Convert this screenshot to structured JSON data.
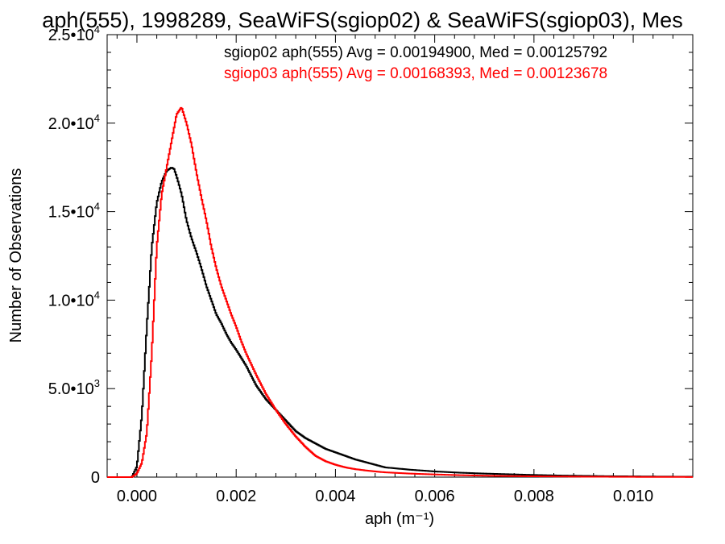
{
  "chart_data": {
    "type": "line",
    "title": "aph(555), 1998289, SeaWiFS(sgiop02) & SeaWiFS(sgiop03), Mes",
    "xlabel": "aph (m⁻¹)",
    "ylabel": "Number of Observations",
    "xlim": [
      -0.0006,
      0.0112
    ],
    "ylim": [
      0,
      25000
    ],
    "xticks": [
      0.0,
      0.002,
      0.004,
      0.006,
      0.008,
      0.01
    ],
    "xtick_labels": [
      "0.000",
      "0.002",
      "0.004",
      "0.006",
      "0.008",
      "0.010"
    ],
    "yticks": [
      0,
      5000,
      10000,
      15000,
      20000,
      25000
    ],
    "ytick_labels": [
      {
        "mant": "0",
        "exp": ""
      },
      {
        "mant": "5.0•10",
        "exp": "3"
      },
      {
        "mant": "1.0•10",
        "exp": "4"
      },
      {
        "mant": "1.5•10",
        "exp": "4"
      },
      {
        "mant": "2.0•10",
        "exp": "4"
      },
      {
        "mant": "2.5•10",
        "exp": "4"
      }
    ],
    "legend_position": "top-right",
    "series": [
      {
        "name": "sgiop02",
        "color": "#000000",
        "legend": "sgiop02 aph(555) Avg = 0.00194900, Med = 0.00125792",
        "x": [
          -0.0006,
          -0.0001,
          0.0,
          0.0001,
          0.0002,
          0.0003,
          0.0004,
          0.0005,
          0.0006,
          0.0007,
          0.00075,
          0.0008,
          0.0009,
          0.001,
          0.0011,
          0.0012,
          0.0013,
          0.0014,
          0.0015,
          0.0016,
          0.0017,
          0.0018,
          0.0019,
          0.002,
          0.0022,
          0.0024,
          0.0026,
          0.0028,
          0.003,
          0.0032,
          0.0034,
          0.0036,
          0.0038,
          0.004,
          0.0042,
          0.0044,
          0.0046,
          0.0048,
          0.005,
          0.0055,
          0.006,
          0.0065,
          0.007,
          0.0075,
          0.008,
          0.0085,
          0.009,
          0.0095,
          0.01,
          0.0105,
          0.0112
        ],
        "y": [
          0,
          0,
          600,
          3500,
          8500,
          13000,
          15500,
          16700,
          17300,
          17500,
          17400,
          17000,
          16000,
          14500,
          13500,
          12700,
          11800,
          10800,
          10000,
          9200,
          8700,
          8100,
          7600,
          7200,
          6300,
          5200,
          4400,
          3800,
          3200,
          2600,
          2200,
          1900,
          1600,
          1400,
          1200,
          1000,
          850,
          700,
          550,
          420,
          320,
          250,
          200,
          160,
          120,
          90,
          70,
          50,
          40,
          30,
          20
        ]
      },
      {
        "name": "sgiop03",
        "color": "#ff0000",
        "legend": "sgiop03 aph(555) Avg = 0.00168393, Med = 0.00123678",
        "x": [
          -0.0006,
          -0.0001,
          0.0,
          0.0001,
          0.0002,
          0.0003,
          0.0004,
          0.0005,
          0.0006,
          0.0007,
          0.0008,
          0.0009,
          0.001,
          0.0011,
          0.0012,
          0.0013,
          0.0014,
          0.0015,
          0.0016,
          0.0017,
          0.0018,
          0.0019,
          0.002,
          0.0021,
          0.0022,
          0.0024,
          0.0026,
          0.0028,
          0.003,
          0.0032,
          0.0034,
          0.0036,
          0.0038,
          0.004,
          0.0042,
          0.0044,
          0.0046,
          0.0048,
          0.005,
          0.0055,
          0.006,
          0.0065,
          0.007,
          0.0075,
          0.008,
          0.0085,
          0.009,
          0.0095,
          0.01,
          0.0105,
          0.0112
        ],
        "y": [
          0,
          0,
          200,
          800,
          2500,
          7000,
          13000,
          16000,
          17500,
          19000,
          20500,
          20900,
          20000,
          18800,
          17200,
          15800,
          14500,
          13000,
          11800,
          10800,
          10000,
          9200,
          8500,
          7700,
          7000,
          5800,
          4700,
          3800,
          3000,
          2300,
          1700,
          1200,
          900,
          700,
          550,
          450,
          380,
          320,
          270,
          200,
          150,
          110,
          80,
          60,
          45,
          35,
          25,
          20,
          15,
          10,
          8
        ]
      }
    ]
  }
}
